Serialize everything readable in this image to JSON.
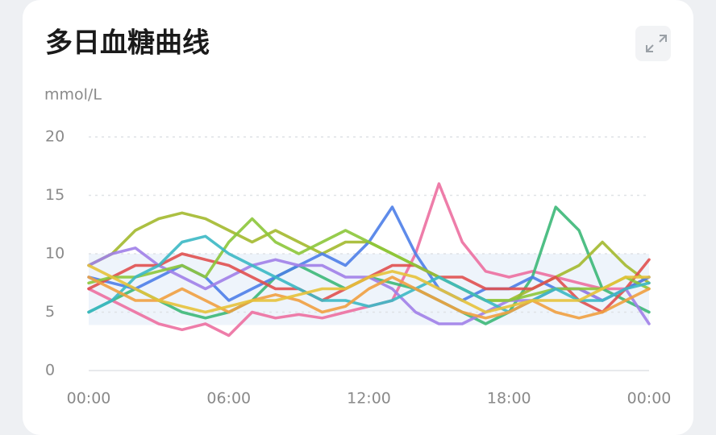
{
  "chart_data": {
    "type": "line",
    "title": "多日血糖曲线",
    "y_label": "mmol/L",
    "x": [
      0,
      1,
      2,
      3,
      4,
      5,
      6,
      7,
      8,
      9,
      10,
      11,
      12,
      13,
      14,
      15,
      16,
      17,
      18,
      19,
      20,
      21,
      22,
      23,
      24
    ],
    "xlim": [
      0,
      24
    ],
    "xticks": [
      {
        "value": 0,
        "label": "00:00"
      },
      {
        "value": 6,
        "label": "06:00"
      },
      {
        "value": 12,
        "label": "12:00"
      },
      {
        "value": 18,
        "label": "18:00"
      },
      {
        "value": 24,
        "label": "00:00"
      }
    ],
    "ylim": [
      0,
      20
    ],
    "yticks": [
      0,
      5,
      10,
      15,
      20
    ],
    "grid": true,
    "target_range": [
      3.9,
      10
    ],
    "target_color": "#eef4fb",
    "series": [
      {
        "color": "#ec6fa0",
        "values": [
          7,
          6,
          5,
          4,
          3.5,
          4,
          3,
          5,
          4.5,
          4.8,
          4.5,
          5,
          5.5,
          6,
          10,
          16,
          11,
          8.5,
          8,
          8.5,
          8,
          7.5,
          7,
          7,
          8
        ]
      },
      {
        "color": "#3cb878",
        "values": [
          5,
          6,
          7,
          6,
          5,
          4.5,
          5,
          6,
          8,
          9,
          8,
          7,
          8,
          7.5,
          7,
          6,
          5,
          4,
          5,
          8,
          14,
          12,
          7,
          6,
          5
        ]
      },
      {
        "color": "#a3b92e",
        "values": [
          9,
          10,
          12,
          13,
          13.5,
          13,
          12,
          11,
          12,
          11,
          10,
          11,
          11,
          10,
          9,
          8,
          7,
          6,
          6,
          7,
          8,
          9,
          11,
          9,
          7.5
        ]
      },
      {
        "color": "#4c7ee8",
        "values": [
          8,
          7.5,
          7,
          8,
          9,
          8,
          6,
          7,
          8,
          9,
          10,
          9,
          11,
          14,
          10,
          7,
          6,
          7,
          7,
          8,
          7,
          7,
          6,
          7,
          8
        ]
      },
      {
        "color": "#a07fe8",
        "values": [
          9,
          10,
          10.5,
          9,
          8,
          7,
          8,
          9,
          9.5,
          9,
          9,
          8,
          8,
          7,
          5,
          4,
          4,
          5,
          6,
          6,
          7,
          7,
          6,
          7,
          4
        ]
      },
      {
        "color": "#e0504f",
        "values": [
          7,
          8,
          9,
          9,
          10,
          9.5,
          9,
          8,
          7,
          7,
          6,
          7,
          8,
          9,
          9,
          8,
          8,
          7,
          7,
          7,
          8,
          6,
          5,
          7,
          9.5
        ]
      },
      {
        "color": "#8cc63a",
        "values": [
          7.5,
          8,
          8,
          8.5,
          9,
          8,
          11,
          13,
          11,
          10,
          11,
          12,
          11,
          10,
          9,
          8,
          7,
          6,
          6,
          6.5,
          7,
          7,
          7,
          8,
          7
        ]
      },
      {
        "color": "#3bb8c4",
        "values": [
          5,
          6,
          8,
          9,
          11,
          11.5,
          10,
          9,
          8,
          7,
          6,
          6,
          5.5,
          6,
          7,
          8,
          7,
          6,
          5,
          6,
          7,
          6,
          6,
          7,
          7.5
        ]
      },
      {
        "color": "#f0a040",
        "values": [
          8,
          7,
          6,
          6,
          7,
          6,
          5,
          6,
          6.5,
          6,
          5,
          5.5,
          7,
          8,
          7,
          6,
          5,
          4.5,
          5,
          6,
          5,
          4.5,
          5,
          6,
          7
        ]
      },
      {
        "color": "#e6c23a",
        "values": [
          9,
          8,
          7,
          6,
          5.5,
          5,
          5.5,
          6,
          6,
          6.5,
          7,
          7,
          8,
          8.5,
          8,
          7,
          6,
          5,
          5.5,
          6,
          6,
          6,
          7,
          8,
          8
        ]
      }
    ]
  }
}
